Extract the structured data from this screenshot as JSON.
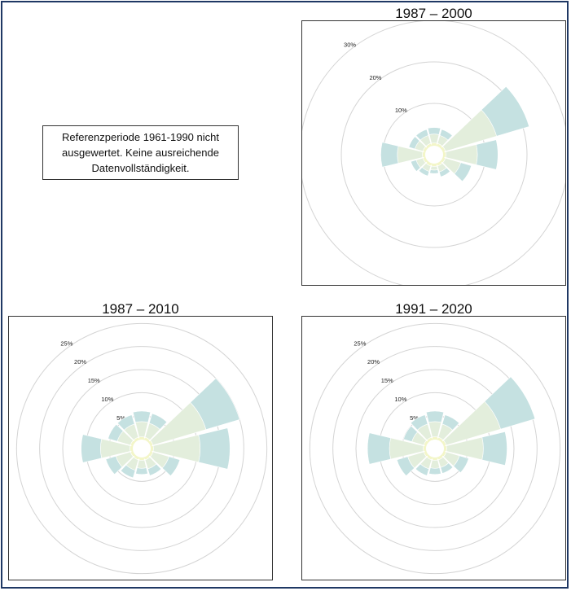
{
  "note": {
    "line1": "Referenzperiode 1961-1990 nicht",
    "line2": "ausgewertet. Keine ausreichende",
    "line3": "Datenvollständigkeit."
  },
  "colors": {
    "frame": "#1f3864",
    "outer_band": "#c5e1e1",
    "middle_band": "#e3eedc",
    "inner_band": "#f3f6c9",
    "grid": "#d4d4d4"
  },
  "chart_data": [
    {
      "type": "polar-bar",
      "title": "1987 – 2000",
      "ring_labels": [
        "10%",
        "20%",
        "30%"
      ],
      "ring_values": [
        10,
        20,
        30
      ],
      "r_max": 30,
      "directions_deg": [
        0,
        30,
        60,
        90,
        120,
        150,
        180,
        210,
        240,
        270,
        300,
        330
      ],
      "values": [
        4.2,
        4.0,
        21.5,
        13.0,
        7.0,
        3.2,
        2.2,
        3.0,
        3.5,
        10.5,
        4.0,
        4.0
      ]
    },
    {
      "type": "polar-bar",
      "title": "1987 – 2010",
      "ring_labels": [
        "5%",
        "10%",
        "15%",
        "20%",
        "25%"
      ],
      "ring_values": [
        5,
        10,
        15,
        20,
        25
      ],
      "r_max": 27,
      "directions_deg": [
        0,
        30,
        60,
        90,
        120,
        150,
        180,
        210,
        240,
        270,
        300,
        330
      ],
      "values": [
        6.0,
        5.8,
        20.0,
        17.0,
        6.5,
        4.0,
        3.5,
        4.5,
        6.0,
        11.0,
        5.5,
        5.5
      ]
    },
    {
      "type": "polar-bar",
      "title": "1991 – 2020",
      "ring_labels": [
        "5%",
        "10%",
        "15%",
        "20%",
        "25%"
      ],
      "ring_values": [
        5,
        10,
        15,
        20,
        25
      ],
      "r_max": 27,
      "directions_deg": [
        0,
        30,
        60,
        90,
        120,
        150,
        180,
        210,
        240,
        270,
        300,
        330
      ],
      "values": [
        6.0,
        5.5,
        20.5,
        13.5,
        5.5,
        3.5,
        3.5,
        4.0,
        6.5,
        12.5,
        5.0,
        5.5
      ]
    }
  ]
}
